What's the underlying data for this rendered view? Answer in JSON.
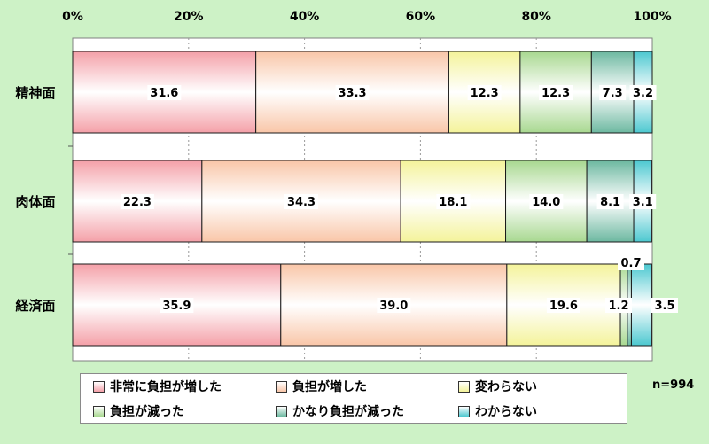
{
  "chart_data": {
    "type": "bar",
    "orientation": "horizontal",
    "stacked": true,
    "percent": true,
    "categories": [
      "精神面",
      "肉体面",
      "経済面"
    ],
    "x_ticks": [
      "0%",
      "20%",
      "40%",
      "60%",
      "80%",
      "100%"
    ],
    "xlim": [
      0,
      100
    ],
    "grid": true,
    "legend_position": "bottom",
    "series": [
      {
        "name": "非常に負担が増した",
        "values": [
          31.6,
          22.3,
          35.9
        ],
        "color": "#f4a0a8"
      },
      {
        "name": "負担が増した",
        "values": [
          33.3,
          34.3,
          39.0
        ],
        "color": "#f9c6a8"
      },
      {
        "name": "変わらない",
        "values": [
          12.3,
          18.1,
          19.6
        ],
        "color": "#f4f39a"
      },
      {
        "name": "負担が減った",
        "values": [
          12.3,
          14.0,
          1.2
        ],
        "color": "#a8d890"
      },
      {
        "name": "かなり負担が減った",
        "values": [
          7.3,
          8.1,
          0.7
        ],
        "color": "#6cb8a0"
      },
      {
        "name": "わからない",
        "values": [
          3.2,
          3.1,
          3.5
        ],
        "color": "#4cc8d0"
      }
    ],
    "value_labels": [
      [
        "31.6",
        "33.3",
        "12.3",
        "12.3",
        "7.3",
        "3.2"
      ],
      [
        "22.3",
        "34.3",
        "18.1",
        "14.0",
        "8.1",
        "3.1"
      ],
      [
        "35.9",
        "39.0",
        "19.6",
        "1.2",
        "0.7",
        "3.5"
      ]
    ]
  },
  "note": "n=994"
}
